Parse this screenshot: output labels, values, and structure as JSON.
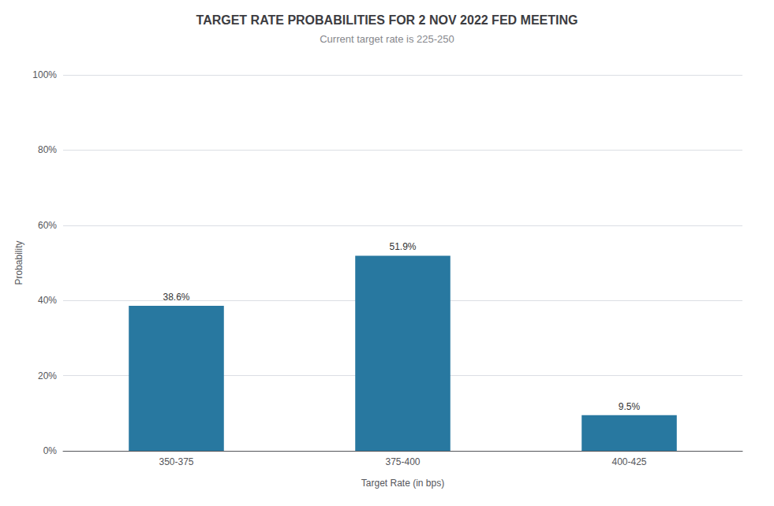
{
  "chart_data": {
    "type": "bar",
    "title": "TARGET RATE PROBABILITIES FOR 2 NOV 2022 FED MEETING",
    "subtitle": "Current target rate is 225-250",
    "categories": [
      "350-375",
      "375-400",
      "400-425"
    ],
    "values": [
      38.6,
      51.9,
      9.5
    ],
    "value_labels": [
      "38.6%",
      "51.9%",
      "9.5%"
    ],
    "data_labels": true,
    "color": "#2878a0",
    "xlabel": "Target Rate (in bps)",
    "ylabel": "Probability",
    "ylim": [
      0,
      100
    ],
    "yticks": [
      {
        "value": 0,
        "label": "0%"
      },
      {
        "value": 20,
        "label": "20%"
      },
      {
        "value": 40,
        "label": "40%"
      },
      {
        "value": 60,
        "label": "60%"
      },
      {
        "value": 80,
        "label": "80%"
      },
      {
        "value": 100,
        "label": "100%"
      }
    ],
    "grid": true
  }
}
